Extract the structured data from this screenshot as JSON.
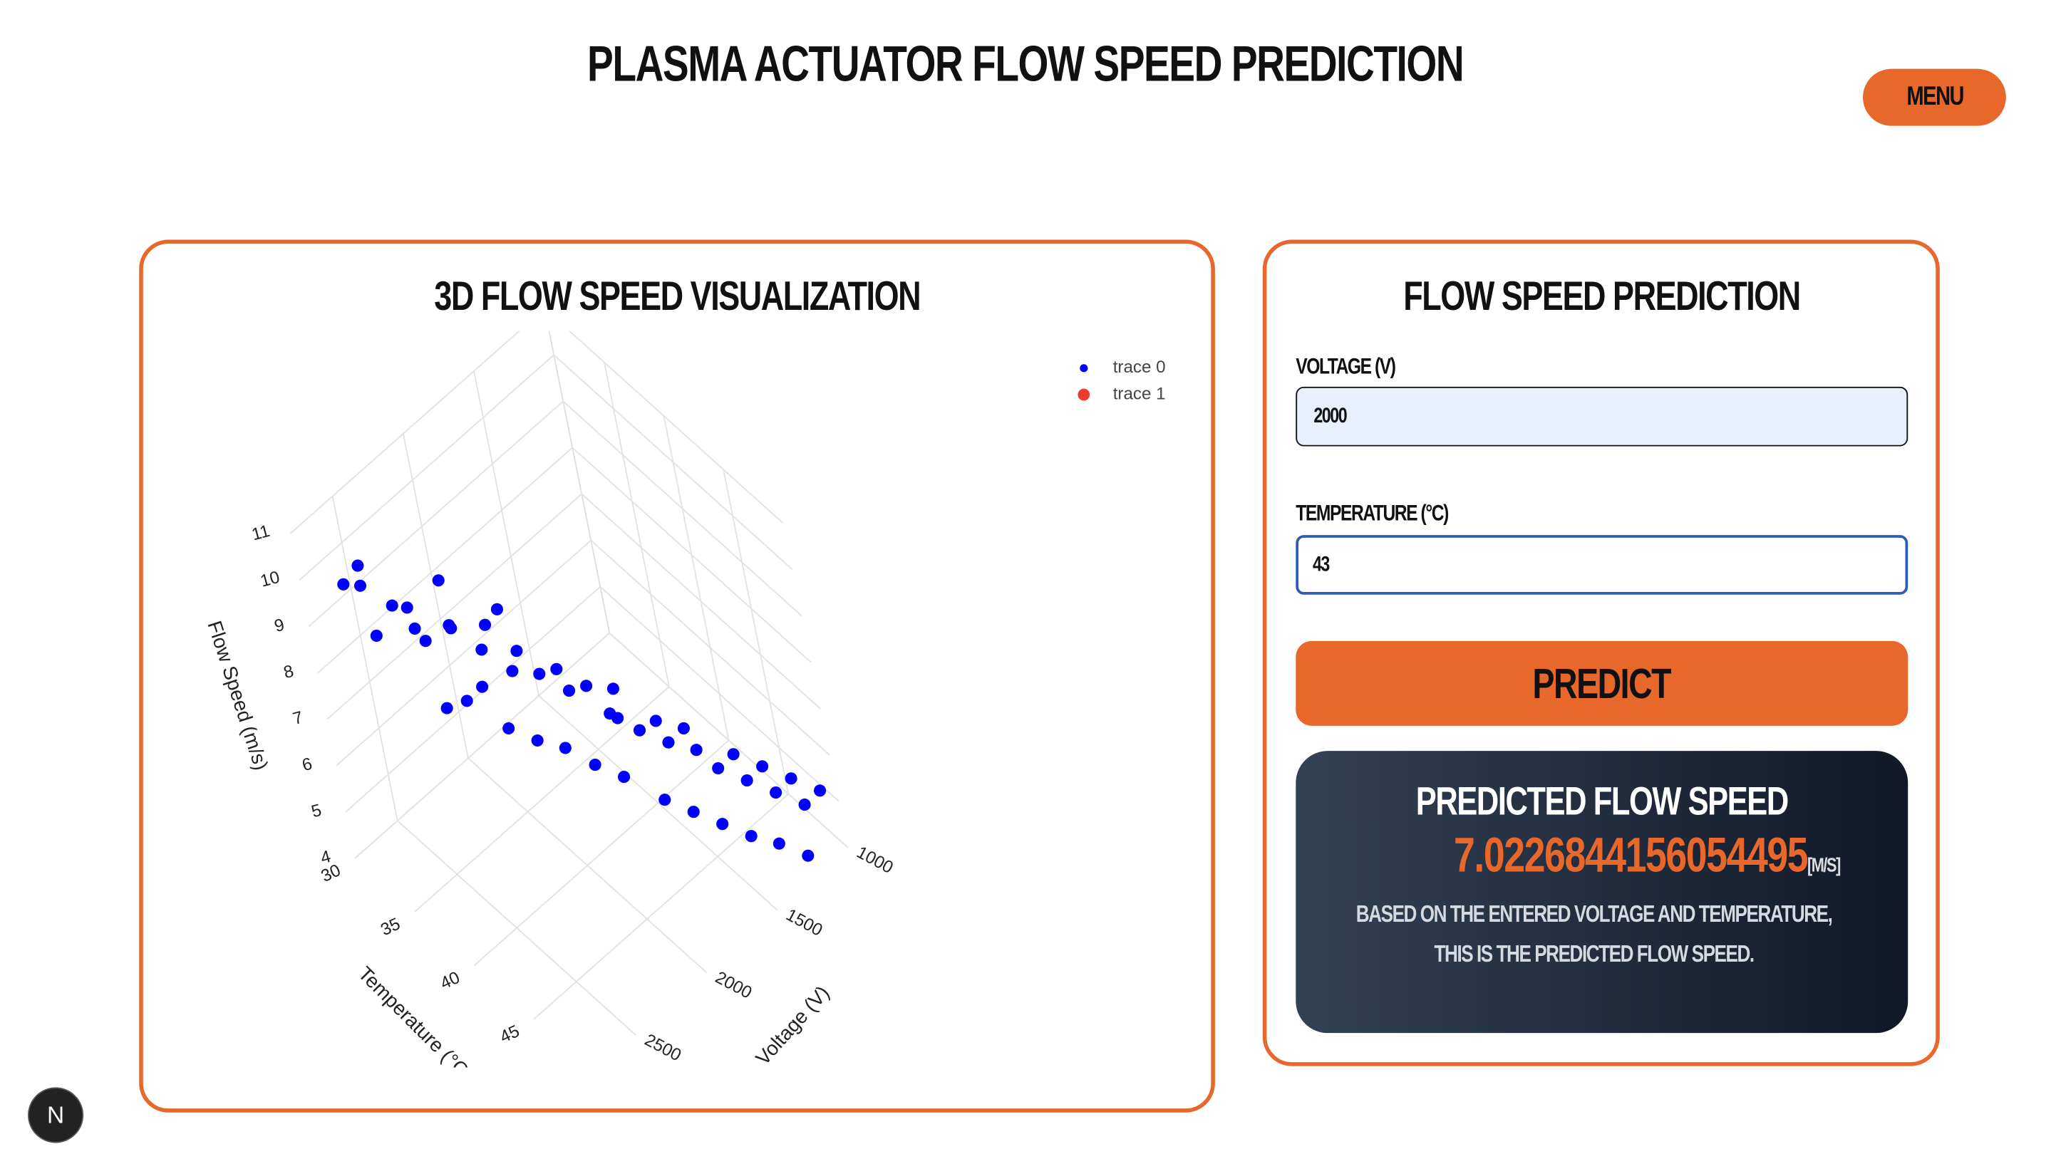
{
  "header": {
    "title": "PLASMA ACTUATOR FLOW SPEED PREDICTION",
    "menu": "MENU"
  },
  "visualization": {
    "title": "3D FLOW SPEED VISUALIZATION",
    "plot": {
      "type": "scatter3d",
      "x_title": "Voltage (V)",
      "y_title": "Temperature (°C)",
      "z_title": "Flow Speed (m/s)",
      "xlim": [
        1000,
        2800
      ],
      "ylim": [
        30,
        50
      ],
      "zlim": [
        4,
        11
      ],
      "xticks": [
        1000,
        1500,
        2000,
        2500
      ],
      "yticks": [
        30,
        35,
        40,
        45
      ],
      "zticks": [
        4,
        5,
        6,
        7,
        8,
        9,
        10,
        11
      ],
      "grid": true,
      "series": [
        {
          "name": "trace 0",
          "color": "#0000ff",
          "x": [
            2600,
            2550,
            2500,
            2580,
            2450,
            2400,
            2480,
            2350,
            2300,
            2420,
            2250,
            2200,
            2300,
            2150,
            2100,
            2250,
            2050,
            2000,
            2150,
            1950,
            1900,
            2050,
            1850,
            1800,
            1950,
            1750,
            1700,
            1850,
            1650,
            1600,
            1750,
            1550,
            1500,
            1650,
            1450,
            1400,
            1550,
            1350,
            1300,
            1450,
            1250,
            1200,
            1350,
            1150,
            1100,
            1250,
            2350,
            2000,
            1700,
            2200
          ],
          "y": [
            31,
            32,
            31,
            33,
            33,
            34,
            35,
            34,
            36,
            36,
            35,
            37,
            38,
            37,
            38,
            39,
            38,
            39,
            40,
            40,
            40,
            41,
            41,
            42,
            42,
            42,
            43,
            43,
            44,
            44,
            45,
            45,
            45,
            46,
            46,
            47,
            47,
            47,
            48,
            48,
            48,
            49,
            49,
            49,
            50,
            50,
            37,
            36,
            41,
            34
          ],
          "z": [
            9.6,
            10.1,
            9.3,
            8.9,
            9.2,
            8.8,
            9.7,
            8.4,
            9.0,
            7.6,
            8.7,
            8.5,
            8.2,
            8.9,
            8.0,
            7.4,
            8.3,
            7.9,
            7.1,
            8.1,
            7.5,
            6.9,
            7.7,
            7.2,
            6.5,
            7.6,
            6.8,
            6.2,
            7.1,
            6.5,
            5.9,
            6.9,
            6.3,
            5.6,
            6.0,
            6.4,
            5.3,
            5.7,
            6.1,
            5.0,
            5.4,
            5.8,
            4.8,
            5.1,
            5.5,
            4.5,
            7.8,
            8.6,
            6.6,
            9.3
          ]
        },
        {
          "name": "trace 1",
          "color": "#ef3b2c",
          "x": [],
          "y": [],
          "z": []
        }
      ]
    }
  },
  "prediction": {
    "title": "FLOW SPEED PREDICTION",
    "voltage_label": "VOLTAGE (V)",
    "voltage_value": "2000",
    "temperature_label": "TEMPERATURE (°C)",
    "temperature_value": "43",
    "button": "PREDICT",
    "result": {
      "title": "PREDICTED FLOW SPEED",
      "value": "7.0226844156054495",
      "unit": "[M/S]",
      "description": "BASED ON THE ENTERED VOLTAGE AND TEMPERATURE, THIS IS THE PREDICTED FLOW SPEED."
    }
  },
  "badge": "N"
}
